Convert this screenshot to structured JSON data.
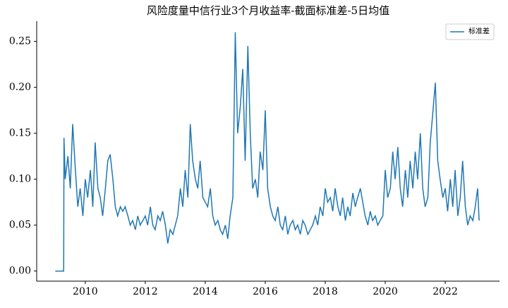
{
  "chart_data": {
    "type": "line",
    "title": "风险度量中信行业3个月收益率-截面标准差-5日均值",
    "x": [
      2009.0,
      2009.08,
      2009.17,
      2009.28,
      2009.29,
      2009.33,
      2009.42,
      2009.5,
      2009.58,
      2009.67,
      2009.75,
      2009.83,
      2009.92,
      2010.0,
      2010.08,
      2010.17,
      2010.25,
      2010.33,
      2010.42,
      2010.5,
      2010.58,
      2010.67,
      2010.75,
      2010.83,
      2010.92,
      2011.0,
      2011.08,
      2011.17,
      2011.25,
      2011.33,
      2011.42,
      2011.5,
      2011.58,
      2011.67,
      2011.75,
      2011.83,
      2011.92,
      2012.0,
      2012.08,
      2012.17,
      2012.25,
      2012.33,
      2012.42,
      2012.5,
      2012.58,
      2012.67,
      2012.75,
      2012.83,
      2012.92,
      2013.0,
      2013.08,
      2013.17,
      2013.25,
      2013.33,
      2013.42,
      2013.5,
      2013.58,
      2013.67,
      2013.75,
      2013.83,
      2013.92,
      2014.0,
      2014.08,
      2014.17,
      2014.25,
      2014.33,
      2014.42,
      2014.5,
      2014.58,
      2014.67,
      2014.75,
      2014.83,
      2014.92,
      2015.0,
      2015.08,
      2015.17,
      2015.25,
      2015.33,
      2015.42,
      2015.5,
      2015.58,
      2015.67,
      2015.75,
      2015.83,
      2015.92,
      2016.0,
      2016.08,
      2016.17,
      2016.25,
      2016.33,
      2016.42,
      2016.5,
      2016.58,
      2016.67,
      2016.75,
      2016.83,
      2016.92,
      2017.0,
      2017.08,
      2017.17,
      2017.25,
      2017.33,
      2017.42,
      2017.5,
      2017.58,
      2017.67,
      2017.75,
      2017.83,
      2017.92,
      2018.0,
      2018.08,
      2018.17,
      2018.25,
      2018.33,
      2018.42,
      2018.5,
      2018.58,
      2018.67,
      2018.75,
      2018.83,
      2018.92,
      2019.0,
      2019.08,
      2019.17,
      2019.25,
      2019.33,
      2019.42,
      2019.5,
      2019.58,
      2019.67,
      2019.75,
      2019.83,
      2019.92,
      2020.0,
      2020.08,
      2020.17,
      2020.25,
      2020.33,
      2020.42,
      2020.5,
      2020.58,
      2020.67,
      2020.75,
      2020.83,
      2020.92,
      2021.0,
      2021.08,
      2021.17,
      2021.25,
      2021.33,
      2021.42,
      2021.5,
      2021.58,
      2021.67,
      2021.75,
      2021.83,
      2021.92,
      2022.0,
      2022.08,
      2022.17,
      2022.25,
      2022.33,
      2022.42,
      2022.5,
      2022.58,
      2022.67,
      2022.75,
      2022.83,
      2022.92,
      2023.0,
      2023.08,
      2023.13
    ],
    "series": [
      {
        "name": "标准差",
        "color": "#1f77b4",
        "values": [
          0,
          0,
          0,
          0,
          0.145,
          0.1,
          0.125,
          0.09,
          0.16,
          0.11,
          0.07,
          0.09,
          0.06,
          0.1,
          0.08,
          0.11,
          0.07,
          0.14,
          0.09,
          0.08,
          0.06,
          0.09,
          0.12,
          0.127,
          0.1,
          0.07,
          0.06,
          0.07,
          0.065,
          0.07,
          0.06,
          0.05,
          0.055,
          0.045,
          0.06,
          0.05,
          0.055,
          0.06,
          0.05,
          0.07,
          0.05,
          0.045,
          0.06,
          0.055,
          0.065,
          0.05,
          0.03,
          0.045,
          0.04,
          0.05,
          0.06,
          0.09,
          0.07,
          0.11,
          0.08,
          0.16,
          0.12,
          0.1,
          0.09,
          0.12,
          0.08,
          0.075,
          0.07,
          0.09,
          0.06,
          0.05,
          0.055,
          0.045,
          0.04,
          0.05,
          0.035,
          0.06,
          0.08,
          0.26,
          0.15,
          0.18,
          0.22,
          0.12,
          0.245,
          0.15,
          0.09,
          0.1,
          0.08,
          0.13,
          0.11,
          0.175,
          0.09,
          0.07,
          0.06,
          0.055,
          0.07,
          0.05,
          0.045,
          0.06,
          0.04,
          0.05,
          0.055,
          0.045,
          0.05,
          0.04,
          0.055,
          0.05,
          0.04,
          0.045,
          0.05,
          0.06,
          0.05,
          0.07,
          0.06,
          0.09,
          0.075,
          0.08,
          0.065,
          0.09,
          0.07,
          0.06,
          0.08,
          0.055,
          0.07,
          0.06,
          0.085,
          0.07,
          0.08,
          0.09,
          0.075,
          0.06,
          0.05,
          0.065,
          0.055,
          0.06,
          0.05,
          0.055,
          0.06,
          0.11,
          0.08,
          0.09,
          0.13,
          0.1,
          0.135,
          0.09,
          0.07,
          0.11,
          0.08,
          0.12,
          0.09,
          0.13,
          0.1,
          0.15,
          0.09,
          0.07,
          0.08,
          0.14,
          0.17,
          0.205,
          0.12,
          0.1,
          0.08,
          0.09,
          0.065,
          0.1,
          0.07,
          0.11,
          0.06,
          0.08,
          0.12,
          0.07,
          0.05,
          0.06,
          0.055,
          0.07,
          0.09,
          0.055
        ]
      }
    ],
    "xlim": [
      2008.38,
      2023.81
    ],
    "xticks": [
      2010,
      2012,
      2014,
      2016,
      2018,
      2020,
      2022
    ],
    "ylim": [
      -0.011,
      0.272
    ],
    "yticks": [
      {
        "value": 0,
        "label": "0.00"
      },
      {
        "value": 0.05,
        "label": "0.05"
      },
      {
        "value": 0.1,
        "label": "0.10"
      },
      {
        "value": 0.15,
        "label": "0.15"
      },
      {
        "value": 0.2,
        "label": "0.20"
      },
      {
        "value": 0.25,
        "label": "0.25"
      }
    ],
    "legend": "upper right"
  }
}
